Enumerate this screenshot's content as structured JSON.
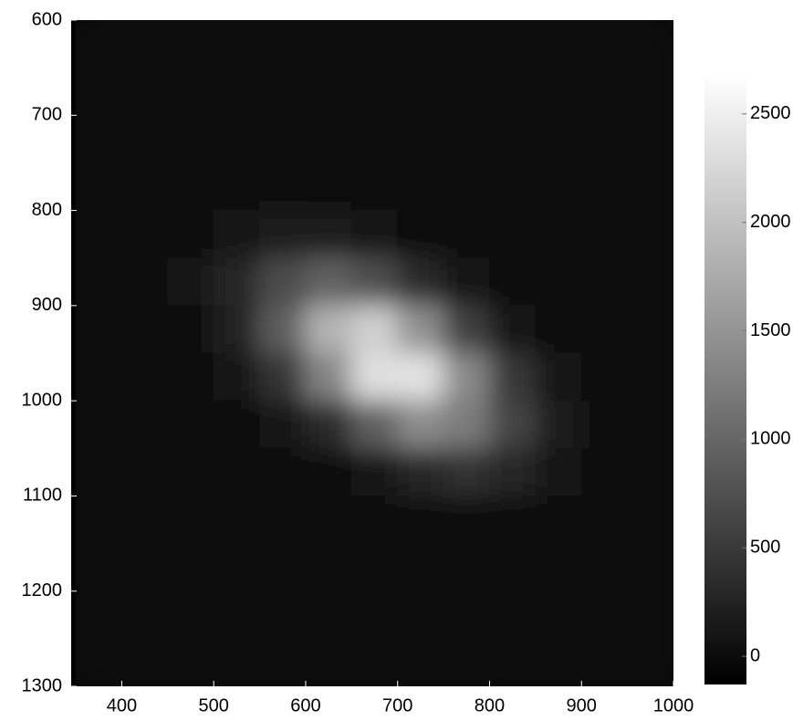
{
  "chart_data": {
    "type": "heatmap",
    "x": [
      375,
      425,
      475,
      525,
      575,
      625,
      675,
      725,
      775,
      825,
      875,
      925,
      975
    ],
    "y": [
      625,
      675,
      725,
      775,
      825,
      875,
      925,
      975,
      1025,
      1075,
      1125,
      1175,
      1225,
      1275
    ],
    "z": [
      [
        0,
        0,
        0,
        0,
        0,
        0,
        0,
        0,
        0,
        0,
        0,
        0,
        0
      ],
      [
        0,
        0,
        0,
        0,
        0,
        0,
        0,
        0,
        0,
        0,
        0,
        0,
        0
      ],
      [
        0,
        0,
        0,
        0,
        0,
        0,
        0,
        0,
        0,
        0,
        0,
        0,
        0
      ],
      [
        0,
        0,
        11,
        20,
        20,
        12,
        0,
        0,
        0,
        0,
        0,
        0,
        0
      ],
      [
        0,
        11,
        49,
        128,
        197,
        177,
        92,
        28,
        0,
        0,
        0,
        0,
        0
      ],
      [
        0,
        11,
        76,
        306,
        700,
        946,
        737,
        335,
        88,
        19,
        0,
        0,
        0
      ],
      [
        0,
        4,
        45,
        266,
        920,
        1857,
        2163,
        1464,
        574,
        131,
        17,
        0,
        0
      ],
      [
        0,
        0,
        10,
        86,
        444,
        1339,
        2337,
        2369,
        1393,
        475,
        94,
        11,
        0
      ],
      [
        0,
        0,
        0,
        10,
        79,
        356,
        929,
        1409,
        1240,
        634,
        187,
        32,
        3
      ],
      [
        0,
        0,
        0,
        0,
        5,
        34,
        136,
        309,
        405,
        312,
        138,
        39,
        5
      ],
      [
        0,
        0,
        0,
        0,
        0,
        0,
        7,
        25,
        50,
        56,
        37,
        17,
        0
      ],
      [
        0,
        0,
        0,
        0,
        0,
        0,
        0,
        0,
        0,
        4,
        4,
        0,
        0
      ],
      [
        0,
        0,
        0,
        0,
        0,
        0,
        0,
        0,
        0,
        0,
        0,
        0,
        0
      ],
      [
        0,
        0,
        0,
        0,
        0,
        0,
        0,
        0,
        0,
        0,
        0,
        0,
        0
      ]
    ],
    "xlim": [
      345,
      1000
    ],
    "xticks": [
      400,
      500,
      600,
      700,
      800,
      900,
      1000
    ],
    "ylim": [
      1300,
      600
    ],
    "yticks": [
      600,
      700,
      800,
      900,
      1000,
      1100,
      1200,
      1300
    ],
    "clim": [
      -130,
      2680
    ],
    "cticks": [
      0,
      500,
      1000,
      1500,
      2000,
      2500
    ],
    "colormap": "gray"
  }
}
